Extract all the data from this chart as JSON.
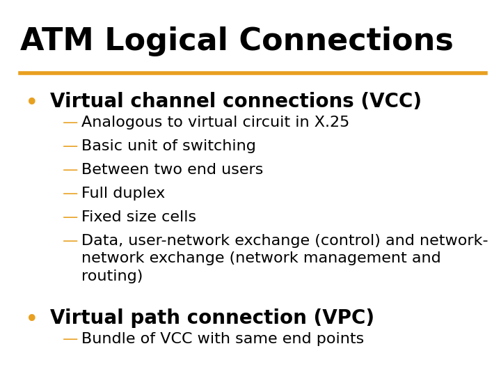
{
  "title": "ATM Logical Connections",
  "title_color": "#000000",
  "title_fontsize": 32,
  "separator_color": "#E8A020",
  "background_color": "#FFFFFF",
  "bullet1_text": "Virtual channel connections (VCC)",
  "bullet1_color": "#000000",
  "bullet1_fontsize": 20,
  "bullet_color": "#E8A020",
  "sub_items1": [
    "Analogous to virtual circuit in X.25",
    "Basic unit of switching",
    "Between two end users",
    "Full duplex",
    "Fixed size cells",
    "Data, user-network exchange (control) and network-\nnetwork exchange (network management and\nrouting)"
  ],
  "sub_color": "#000000",
  "sub_dash_color": "#E8A020",
  "sub_fontsize": 16,
  "bullet2_text": "Virtual path connection (VPC)",
  "bullet2_color": "#000000",
  "bullet2_fontsize": 20,
  "sub_items2": [
    "Bundle of VCC with same end points"
  ]
}
